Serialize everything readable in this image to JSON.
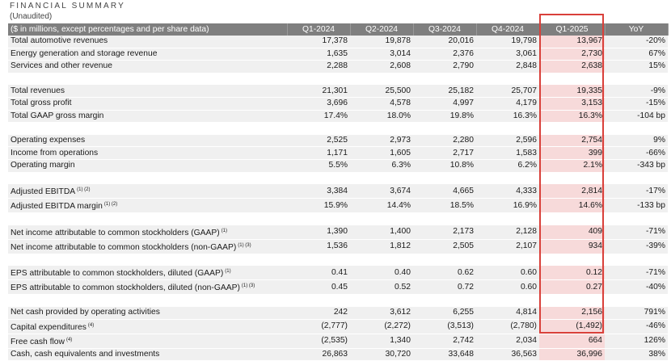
{
  "title": "FINANCIAL SUMMARY",
  "subtitle": "(Unaudited)",
  "columns": [
    "($ in millions, except percentages and per share data)",
    "Q1-2024",
    "Q2-2024",
    "Q3-2024",
    "Q4-2024",
    "Q1-2025",
    "YoY"
  ],
  "highlight_color": "#d9403a",
  "rows": [
    {
      "label": "Total automotive revenues",
      "sup": "",
      "values": [
        "17,378",
        "19,878",
        "20,016",
        "19,798",
        "13,967",
        "-20%"
      ]
    },
    {
      "label": "Energy generation and storage revenue",
      "sup": "",
      "values": [
        "1,635",
        "3,014",
        "2,376",
        "3,061",
        "2,730",
        "67%"
      ]
    },
    {
      "label": "Services and other revenue",
      "sup": "",
      "values": [
        "2,288",
        "2,608",
        "2,790",
        "2,848",
        "2,638",
        "15%"
      ]
    },
    null,
    {
      "label": "Total revenues",
      "sup": "",
      "values": [
        "21,301",
        "25,500",
        "25,182",
        "25,707",
        "19,335",
        "-9%"
      ]
    },
    {
      "label": "Total gross profit",
      "sup": "",
      "values": [
        "3,696",
        "4,578",
        "4,997",
        "4,179",
        "3,153",
        "-15%"
      ]
    },
    {
      "label": "Total GAAP gross margin",
      "sup": "",
      "values": [
        "17.4%",
        "18.0%",
        "19.8%",
        "16.3%",
        "16.3%",
        "-104 bp"
      ]
    },
    null,
    {
      "label": "Operating expenses",
      "sup": "",
      "values": [
        "2,525",
        "2,973",
        "2,280",
        "2,596",
        "2,754",
        "9%"
      ]
    },
    {
      "label": "Income from operations",
      "sup": "",
      "values": [
        "1,171",
        "1,605",
        "2,717",
        "1,583",
        "399",
        "-66%"
      ]
    },
    {
      "label": "Operating margin",
      "sup": "",
      "values": [
        "5.5%",
        "6.3%",
        "10.8%",
        "6.2%",
        "2.1%",
        "-343 bp"
      ]
    },
    null,
    {
      "label": "Adjusted EBITDA",
      "sup": "(1) (2)",
      "values": [
        "3,384",
        "3,674",
        "4,665",
        "4,333",
        "2,814",
        "-17%"
      ]
    },
    {
      "label": "Adjusted EBITDA margin",
      "sup": "(1) (2)",
      "values": [
        "15.9%",
        "14.4%",
        "18.5%",
        "16.9%",
        "14.6%",
        "-133 bp"
      ]
    },
    null,
    {
      "label": "Net income attributable to common stockholders (GAAP)",
      "sup": "(1)",
      "values": [
        "1,390",
        "1,400",
        "2,173",
        "2,128",
        "409",
        "-71%"
      ]
    },
    {
      "label": "Net income attributable to common stockholders (non-GAAP)",
      "sup": "(1) (3)",
      "values": [
        "1,536",
        "1,812",
        "2,505",
        "2,107",
        "934",
        "-39%"
      ]
    },
    null,
    {
      "label": "EPS attributable to common stockholders, diluted (GAAP)",
      "sup": "(1)",
      "values": [
        "0.41",
        "0.40",
        "0.62",
        "0.60",
        "0.12",
        "-71%"
      ]
    },
    {
      "label": "EPS attributable to common stockholders, diluted (non-GAAP)",
      "sup": "(1) (3)",
      "values": [
        "0.45",
        "0.52",
        "0.72",
        "0.60",
        "0.27",
        "-40%"
      ]
    },
    null,
    {
      "label": "Net cash provided by operating activities",
      "sup": "",
      "values": [
        "242",
        "3,612",
        "6,255",
        "4,814",
        "2,156",
        "791%"
      ]
    },
    {
      "label": "Capital expenditures",
      "sup": "(4)",
      "values": [
        "(2,777)",
        "(2,272)",
        "(3,513)",
        "(2,780)",
        "(1,492)",
        "-46%"
      ]
    },
    {
      "label": "Free cash flow",
      "sup": "(4)",
      "values": [
        "(2,535)",
        "1,340",
        "2,742",
        "2,034",
        "664",
        "126%"
      ]
    },
    {
      "label": "Cash, cash equivalents and investments",
      "sup": "",
      "values": [
        "26,863",
        "30,720",
        "33,648",
        "36,563",
        "36,996",
        "38%"
      ]
    }
  ]
}
